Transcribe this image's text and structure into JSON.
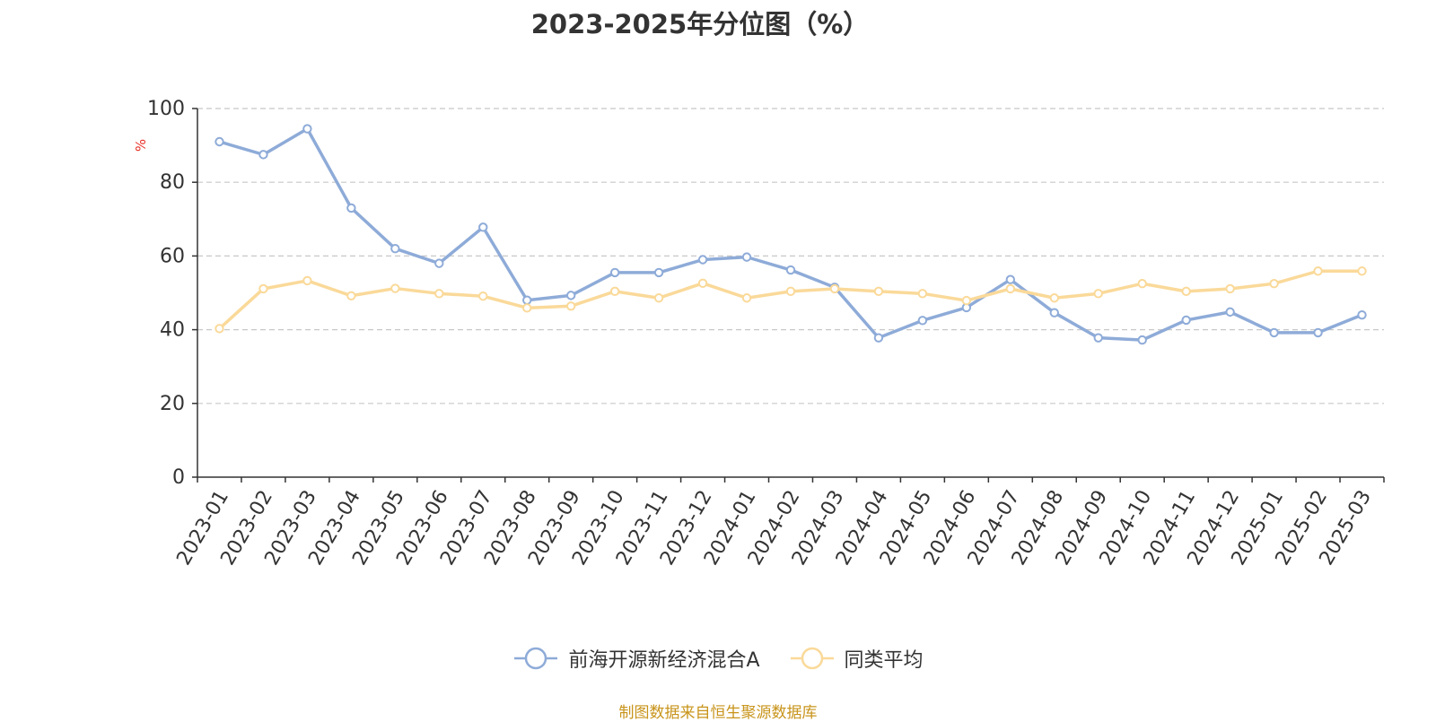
{
  "chart_data": {
    "type": "line",
    "title": "2023-2025年分位图（%）",
    "ylabel": "%",
    "ylim": [
      0,
      100
    ],
    "yticks": [
      "0",
      "20",
      "40",
      "60",
      "80",
      "100"
    ],
    "grid": true,
    "legend_position": "bottom",
    "categories": [
      "2023-01",
      "2023-02",
      "2023-03",
      "2023-04",
      "2023-05",
      "2023-06",
      "2023-07",
      "2023-08",
      "2023-09",
      "2023-10",
      "2023-11",
      "2023-12",
      "2024-01",
      "2024-02",
      "2024-03",
      "2024-04",
      "2024-05",
      "2024-06",
      "2024-07",
      "2024-08",
      "2024-09",
      "2024-10",
      "2024-11",
      "2024-12",
      "2025-01",
      "2025-02",
      "2025-03"
    ],
    "series": [
      {
        "name": "前海开源新经济混合A",
        "color": "#8eabd8",
        "values": [
          91,
          87.5,
          94.5,
          73,
          62,
          58,
          67.8,
          48,
          49.3,
          55.5,
          55.5,
          59,
          59.7,
          56.2,
          51.5,
          37.8,
          42.5,
          46,
          53.6,
          44.6,
          37.8,
          37.2,
          42.6,
          44.8,
          39.2,
          39.2,
          44
        ]
      },
      {
        "name": "同类平均",
        "color": "#fad999",
        "values": [
          40.3,
          51.1,
          53.3,
          49.2,
          51.2,
          49.8,
          49.1,
          45.9,
          46.4,
          50.4,
          48.6,
          52.6,
          48.6,
          50.4,
          51.1,
          50.4,
          49.8,
          47.9,
          51.1,
          48.6,
          49.8,
          52.5,
          50.4,
          51.1,
          52.5,
          55.9,
          55.9
        ]
      }
    ]
  },
  "footer": {
    "source": "制图数据来自恒生聚源数据库"
  }
}
